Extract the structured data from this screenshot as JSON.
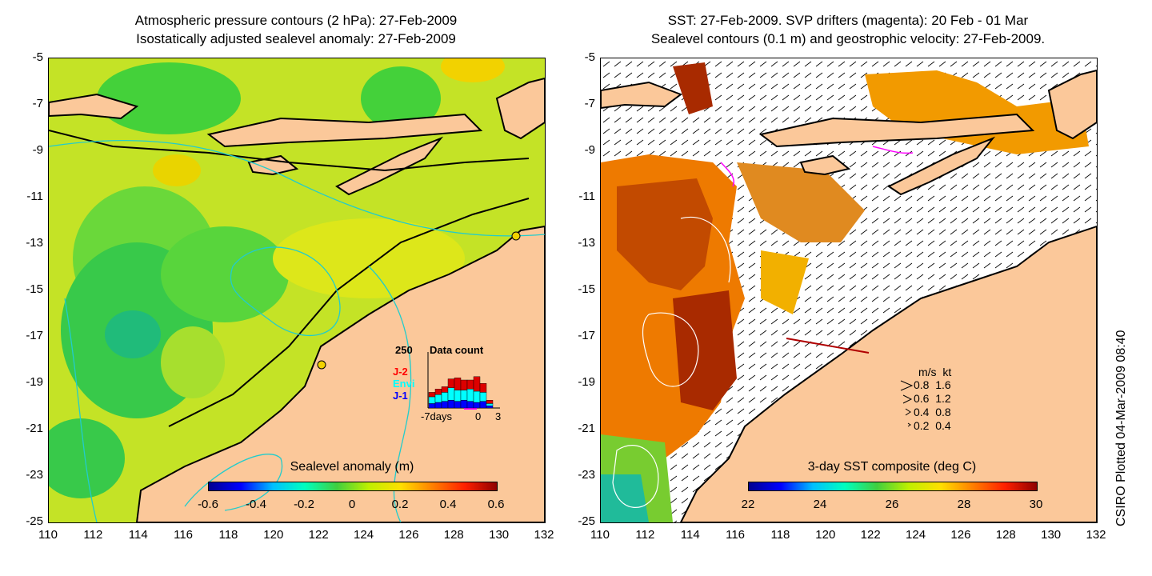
{
  "left_panel": {
    "title_line1": "Atmospheric pressure contours (2 hPa): 27-Feb-2009",
    "title_line2": "Isostatically adjusted sealevel anomaly: 27-Feb-2009",
    "colorbar": {
      "title": "Sealevel anomaly (m)",
      "ticks": [
        "-0.6",
        "-0.4",
        "-0.2",
        "0",
        "0.2",
        "0.4",
        "0.6"
      ],
      "range": [
        -0.6,
        0.6
      ]
    },
    "histogram": {
      "title": "Data count",
      "max_label": "250",
      "x_labels": [
        "-7days",
        "0",
        "3"
      ],
      "legend": [
        {
          "label": "J-2",
          "color": "#ff0000"
        },
        {
          "label": "Envi",
          "color": "#00ffff"
        },
        {
          "label": "J-1",
          "color": "#0000ff"
        }
      ],
      "bars": [
        {
          "j1": 20,
          "envi": 30,
          "j2": 20
        },
        {
          "j1": 25,
          "envi": 35,
          "j2": 25
        },
        {
          "j1": 30,
          "envi": 40,
          "j2": 25
        },
        {
          "j1": 35,
          "envi": 55,
          "j2": 40
        },
        {
          "j1": 30,
          "envi": 50,
          "j2": 55
        },
        {
          "j1": 35,
          "envi": 45,
          "j2": 45
        },
        {
          "j1": 30,
          "envi": 55,
          "j2": 40
        },
        {
          "j1": 25,
          "envi": 50,
          "j2": 65
        },
        {
          "j1": 30,
          "envi": 40,
          "j2": 40
        },
        {
          "j1": 10,
          "envi": 10,
          "j2": 15
        }
      ]
    }
  },
  "right_panel": {
    "title_line1": "SST: 27-Feb-2009. SVP drifters (magenta): 20 Feb - 01 Mar",
    "title_line2": "Sealevel contours (0.1 m) and geostrophic velocity: 27-Feb-2009.",
    "colorbar": {
      "title": "3-day SST composite (deg C)",
      "ticks": [
        "22",
        "24",
        "26",
        "28",
        "30"
      ],
      "range": [
        22,
        30
      ]
    },
    "velocity_legend": {
      "header": "m/s  kt",
      "rows": [
        "0.8  1.6",
        "0.6  1.2",
        "0.4  0.8",
        "0.2  0.4"
      ]
    }
  },
  "axes": {
    "y_ticks": [
      "-5",
      "-7",
      "-9",
      "-11",
      "-13",
      "-15",
      "-17",
      "-19",
      "-21",
      "-23",
      "-25"
    ],
    "x_ticks": [
      "110",
      "112",
      "114",
      "116",
      "118",
      "120",
      "122",
      "124",
      "126",
      "128",
      "130",
      "132"
    ]
  },
  "credit": "CSIRO Plotted 04-Mar-2009 08:40",
  "colors": {
    "land": "#fbc89a",
    "anomaly_base": "#c8e82a",
    "white": "#ffffff"
  }
}
